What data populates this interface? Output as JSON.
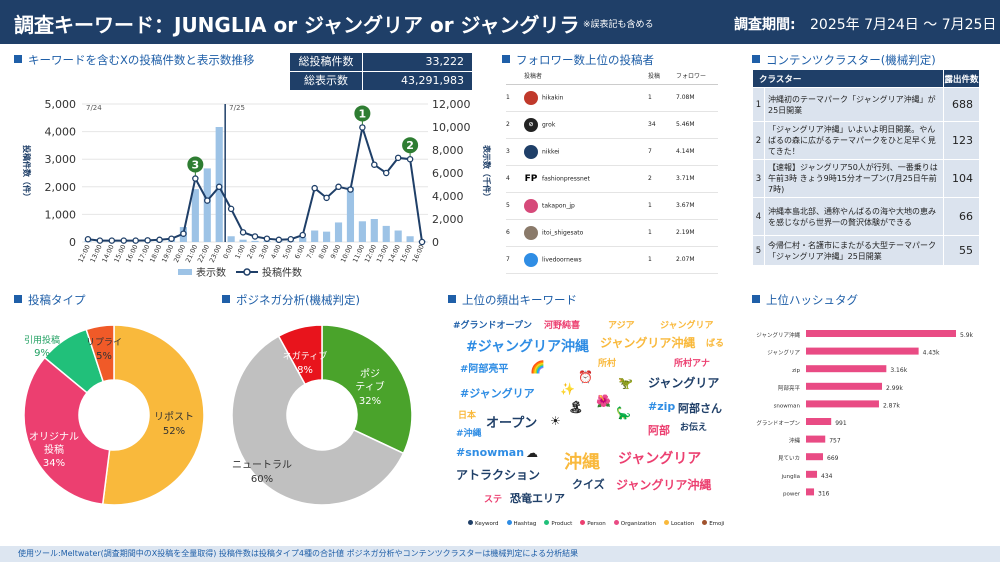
{
  "header": {
    "title": "調査キーワード：JUNGLIA or ジャングリア or ジャングリラ",
    "note": "※誤表記も含める",
    "period_label": "調査期間:",
    "period": "2025年 7月24日 ～ 7月25日"
  },
  "trend": {
    "title": "キーワードを含むXの投稿件数と表示数推移",
    "kpi": [
      {
        "label": "総投稿件数",
        "value": "33,222"
      },
      {
        "label": "総表示数",
        "value": "43,291,983"
      }
    ],
    "left_axis_label": "投稿件数（件）",
    "right_axis_label": "表示数（千件）",
    "date_labels": [
      "7/24",
      "7/25"
    ],
    "legend": [
      "表示数",
      "投稿件数"
    ],
    "markers": [
      "1",
      "2",
      "3"
    ],
    "colors": {
      "bar": "#9dc3e6",
      "line": "#1f3f68",
      "marker": "#2e7d32"
    }
  },
  "chart_data": [
    {
      "type": "bar+line",
      "x": [
        "12:00",
        "13:00",
        "14:00",
        "15:00",
        "16:00",
        "17:00",
        "18:00",
        "19:00",
        "20:00",
        "21:00",
        "22:00",
        "23:00",
        "0:00",
        "1:00",
        "2:00",
        "3:00",
        "4:00",
        "5:00",
        "6:00",
        "7:00",
        "8:00",
        "9:00",
        "10:00",
        "11:00",
        "12:00",
        "13:00",
        "14:00",
        "15:00",
        "16:00"
      ],
      "series": [
        {
          "name": "表示数",
          "axis": "right",
          "values": [
            100,
            100,
            100,
            100,
            100,
            100,
            200,
            300,
            1300,
            4600,
            6400,
            10000,
            500,
            200,
            100,
            100,
            100,
            100,
            400,
            1000,
            900,
            1700,
            4800,
            1800,
            2000,
            1400,
            1000,
            500,
            100
          ]
        },
        {
          "name": "投稿件数",
          "axis": "left",
          "values": [
            100,
            50,
            50,
            50,
            50,
            60,
            80,
            120,
            300,
            2300,
            1500,
            2000,
            1200,
            350,
            200,
            120,
            80,
            100,
            250,
            1950,
            1600,
            2000,
            1900,
            4150,
            2800,
            2500,
            3050,
            3000,
            0
          ]
        }
      ],
      "y_left": {
        "label": "投稿件数（件）",
        "ticks": [
          0,
          1000,
          2000,
          3000,
          4000,
          5000
        ],
        "lim": [
          0,
          5000
        ]
      },
      "y_right": {
        "label": "表示数（千件）",
        "ticks": [
          0,
          2000,
          4000,
          6000,
          8000,
          10000,
          12000
        ],
        "lim": [
          0,
          12000
        ]
      }
    },
    {
      "type": "pie",
      "title": "投稿タイプ",
      "slices": [
        {
          "label": "リポスト",
          "value": 52,
          "color": "#f9b93c"
        },
        {
          "label": "オリジナル投稿",
          "value": 34,
          "color": "#ec3f70"
        },
        {
          "label": "引用投稿",
          "value": 9,
          "color": "#21c07a"
        },
        {
          "label": "リプライ",
          "value": 5,
          "color": "#f05a28"
        }
      ]
    },
    {
      "type": "pie",
      "title": "ポジネガ分析(機械判定)",
      "slices": [
        {
          "label": "ポジティブ",
          "value": 32,
          "color": "#4aa32b"
        },
        {
          "label": "ニュートラル",
          "value": 60,
          "color": "#c0c0c0"
        },
        {
          "label": "ネガティブ",
          "value": 8,
          "color": "#e8141c"
        }
      ]
    },
    {
      "type": "bar",
      "title": "上位ハッシュタグ",
      "categories": [
        "ジャングリア沖縄",
        "ジャングリア",
        "zip",
        "阿部亮平",
        "snowman",
        "グランドオープン",
        "沖縄",
        "見ていカ",
        "junglia",
        "power"
      ],
      "values": [
        5900,
        4430,
        3160,
        2990,
        2870,
        991,
        757,
        669,
        434,
        316
      ],
      "labels": [
        "5.9k",
        "4.43k",
        "3.16k",
        "2.99k",
        "2.87k",
        "991",
        "757",
        "669",
        "434",
        "316"
      ],
      "color": "#e94b84"
    }
  ],
  "followers": {
    "title": "フォロワー数上位の投稿者",
    "columns": [
      "投稿者",
      "投稿",
      "フォロワー"
    ],
    "rows": [
      {
        "rank": "1",
        "name": "hikakin",
        "posts": "1",
        "followers": "7.08M"
      },
      {
        "rank": "2",
        "name": "grok",
        "posts": "34",
        "followers": "5.46M"
      },
      {
        "rank": "3",
        "name": "nikkei",
        "posts": "7",
        "followers": "4.14M"
      },
      {
        "rank": "4",
        "name": "fashionpressnet",
        "posts": "2",
        "followers": "3.71M"
      },
      {
        "rank": "5",
        "name": "takapon_jp",
        "posts": "1",
        "followers": "3.67M"
      },
      {
        "rank": "6",
        "name": "itoi_shigesato",
        "posts": "1",
        "followers": "2.19M"
      },
      {
        "rank": "7",
        "name": "livedoornews",
        "posts": "1",
        "followers": "2.07M"
      }
    ]
  },
  "clusters": {
    "title": "コンテンツクラスター(機械判定)",
    "columns": [
      "クラスター",
      "露出件数"
    ],
    "rows": [
      {
        "n": "1",
        "text": "沖縄初のテーマパーク「ジャングリア沖縄」が25日開業",
        "count": "688"
      },
      {
        "n": "2",
        "text": "「ジャングリア沖縄」いよいよ明日開業。やんばるの森に広がるテーマパークをひと足早く見てきた！",
        "count": "123"
      },
      {
        "n": "3",
        "text": "【速報】ジャングリア50人が行列、一番乗りは午前3時 きょう9時15分オープン(7月25日午前7時)",
        "count": "104"
      },
      {
        "n": "4",
        "text": "沖縄本島北部、通称やんばるの海や大地の恵みを感じながら世界一の贅沢体験ができる",
        "count": "66"
      },
      {
        "n": "5",
        "text": "今帰仁村・名護市にまたがる大型テーマパーク「ジャングリア沖縄」25日開業",
        "count": "55"
      }
    ]
  },
  "post_type": {
    "title": "投稿タイプ",
    "labels": [
      "リポスト",
      "52%",
      "オリジナル",
      "投稿",
      "34%",
      "引用投稿",
      "9%",
      "リプライ",
      "5%"
    ]
  },
  "sentiment": {
    "title": "ポジネガ分析(機械判定)",
    "labels": [
      "ポジ",
      "ティブ",
      "32%",
      "ニュートラル",
      "60%",
      "ネガティブ",
      "8%"
    ]
  },
  "keywords": {
    "title": "上位の頻出キーワード",
    "words": [
      {
        "text": "#グランドオープン",
        "color": "#1f5fa8"
      },
      {
        "text": "河野純喜",
        "color": "#ec3f70"
      },
      {
        "text": "アジア",
        "color": "#f9b93c"
      },
      {
        "text": "ジャングリア",
        "color": "#f9b93c"
      },
      {
        "text": "#ジャングリア沖縄",
        "color": "#2f8de4"
      },
      {
        "text": "ジャングリア沖縄",
        "color": "#f9b93c"
      },
      {
        "text": "ばる",
        "color": "#f9b93c"
      },
      {
        "text": "#阿部亮平",
        "color": "#2f8de4"
      },
      {
        "text": "所村",
        "color": "#f9b93c"
      },
      {
        "text": "所村アナ",
        "color": "#ec3f70"
      },
      {
        "text": "#ジャングリア",
        "color": "#2f8de4"
      },
      {
        "text": "ジャングリア",
        "color": "#1f3f68"
      },
      {
        "text": "日本",
        "color": "#f9b93c"
      },
      {
        "text": "オープン",
        "color": "#1f3f68"
      },
      {
        "text": "#zip",
        "color": "#2f8de4"
      },
      {
        "text": "阿部さん",
        "color": "#1f3f68"
      },
      {
        "text": "#沖縄",
        "color": "#2f8de4"
      },
      {
        "text": "阿部",
        "color": "#ec3f70"
      },
      {
        "text": "お伝え",
        "color": "#1f3f68"
      },
      {
        "text": "#snowman",
        "color": "#2f8de4"
      },
      {
        "text": "沖縄",
        "color": "#f9b93c"
      },
      {
        "text": "ジャングリア",
        "color": "#ec3f70"
      },
      {
        "text": "アトラクション",
        "color": "#1f3f68"
      },
      {
        "text": "クイズ",
        "color": "#1f3f68"
      },
      {
        "text": "ジャングリア沖縄",
        "color": "#ec3f70"
      },
      {
        "text": "ステ",
        "color": "#ec3f70"
      },
      {
        "text": "恐竜エリア",
        "color": "#1f3f68"
      }
    ],
    "legend": [
      {
        "label": "Keyword",
        "color": "#1f3f68"
      },
      {
        "label": "Hashtag",
        "color": "#2f8de4"
      },
      {
        "label": "Product",
        "color": "#21c07a"
      },
      {
        "label": "Person",
        "color": "#ec3f70"
      },
      {
        "label": "Organization",
        "color": "#e94b84"
      },
      {
        "label": "Location",
        "color": "#f9b93c"
      },
      {
        "label": "Emoji",
        "color": "#a0522d"
      }
    ]
  },
  "hashtags": {
    "title": "上位ハッシュタグ"
  },
  "footer": "使用ツール:Meltwater(調査期間中のX投稿を全量取得) 投稿件数は投稿タイプ4種の合計値 ポジネガ分析やコンテンツクラスターは機械判定による分析結果"
}
